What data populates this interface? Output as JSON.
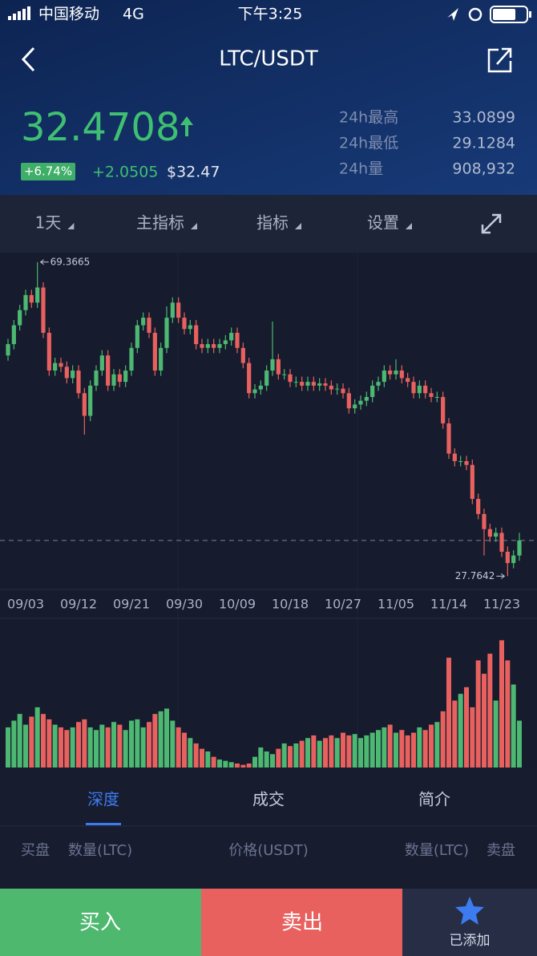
{
  "status_bar": {
    "carrier": "中国移动",
    "network": "4G",
    "time": "下午3:25"
  },
  "header": {
    "title": "LTC/USDT"
  },
  "ticker": {
    "price": "32.4708",
    "change_pct": "+6.74%",
    "change": "+2.0505",
    "usd": "$32.47",
    "stats": [
      {
        "label": "24h最高",
        "value": "33.0899"
      },
      {
        "label": "24h最低",
        "value": "29.1284"
      },
      {
        "label": "24h量",
        "value": "908,932"
      }
    ]
  },
  "toolbar": [
    "1天",
    "主指标",
    "指标",
    "设置"
  ],
  "chart_data": {
    "type": "candlestick",
    "up_color": "#4cb872",
    "down_color": "#e8615f",
    "ylim": [
      26,
      70.3
    ],
    "vlim": [
      0,
      100
    ],
    "categories": [
      null,
      null,
      null,
      "09/03",
      null,
      null,
      null,
      null,
      null,
      null,
      null,
      null,
      "09/12",
      null,
      null,
      null,
      null,
      null,
      null,
      null,
      null,
      "09/21",
      null,
      null,
      null,
      null,
      null,
      null,
      null,
      null,
      "09/30",
      null,
      null,
      null,
      null,
      null,
      null,
      null,
      null,
      "10/09",
      null,
      null,
      null,
      null,
      null,
      null,
      null,
      null,
      "10/18",
      null,
      null,
      null,
      null,
      null,
      null,
      null,
      null,
      "10/27",
      null,
      null,
      null,
      null,
      null,
      null,
      null,
      null,
      "11/05",
      null,
      null,
      null,
      null,
      null,
      null,
      null,
      null,
      "11/14",
      null,
      null,
      null,
      null,
      null,
      null,
      null,
      null,
      "11/23",
      null,
      null,
      null
    ],
    "candles": [
      [
        57,
        59.2,
        56.3,
        58.5
      ],
      [
        58.5,
        61.7,
        57.8,
        61
      ],
      [
        61,
        63.7,
        60.3,
        63
      ],
      [
        63,
        65.7,
        62.3,
        65
      ],
      [
        65,
        65.7,
        63.3,
        64
      ],
      [
        64,
        69.3665,
        63.3,
        66
      ],
      [
        66,
        66.7,
        59.3,
        60
      ],
      [
        60,
        60.7,
        54.3,
        55
      ],
      [
        55,
        56.7,
        54.3,
        56
      ],
      [
        56,
        56.7,
        54.8,
        55.5
      ],
      [
        55.5,
        56.2,
        53.3,
        54
      ],
      [
        54,
        55.7,
        53.3,
        55
      ],
      [
        55,
        55.7,
        51.3,
        52
      ],
      [
        52,
        52.7,
        46.5,
        49
      ],
      [
        49,
        53.7,
        48.3,
        53
      ],
      [
        53,
        55.7,
        52.3,
        55
      ],
      [
        55,
        57.7,
        54.3,
        57
      ],
      [
        57,
        57.7,
        52.3,
        53
      ],
      [
        53,
        55.2,
        52.3,
        54.5
      ],
      [
        54.5,
        55.2,
        52.8,
        53.5
      ],
      [
        53.5,
        55.7,
        52.8,
        55
      ],
      [
        55,
        58.7,
        54.3,
        58
      ],
      [
        58,
        61.7,
        57.3,
        61
      ],
      [
        61,
        62.7,
        60.3,
        62
      ],
      [
        62,
        62.7,
        59.3,
        60
      ],
      [
        60,
        60.7,
        54.3,
        55
      ],
      [
        55,
        58.7,
        54.3,
        58
      ],
      [
        58,
        63.5,
        57.3,
        62
      ],
      [
        62,
        64.7,
        61.3,
        64
      ],
      [
        64,
        64.7,
        61.3,
        62
      ],
      [
        62,
        62.7,
        59.8,
        60.5
      ],
      [
        60.5,
        61.7,
        59.8,
        61
      ],
      [
        61,
        61.7,
        57.8,
        58.5
      ],
      [
        58.5,
        59.2,
        57.3,
        58
      ],
      [
        58,
        59.2,
        57.3,
        58.5
      ],
      [
        58.5,
        59.2,
        57.3,
        58
      ],
      [
        58,
        59.2,
        57.3,
        58.5
      ],
      [
        58.5,
        59.7,
        57.8,
        59
      ],
      [
        59,
        60.7,
        58.3,
        60
      ],
      [
        60,
        60.7,
        57.3,
        58
      ],
      [
        58,
        58.7,
        55.3,
        56
      ],
      [
        56,
        56.7,
        51.3,
        52
      ],
      [
        52,
        53.2,
        51.3,
        52.5
      ],
      [
        52.5,
        53.7,
        51.8,
        53
      ],
      [
        53,
        55.7,
        52.3,
        55
      ],
      [
        55,
        61.5,
        54.3,
        56.5
      ],
      [
        56.5,
        57.2,
        53.8,
        54.5
      ],
      [
        54.5,
        55.2,
        53.8,
        54.5
      ],
      [
        54.5,
        55.2,
        52.8,
        53.5
      ],
      [
        53.5,
        54.2,
        52.8,
        53.5
      ],
      [
        53.5,
        54.2,
        52.3,
        53
      ],
      [
        53,
        54.2,
        52.3,
        53.5
      ],
      [
        53.5,
        54.2,
        52.3,
        53
      ],
      [
        53,
        54,
        52.3,
        53.3
      ],
      [
        53.3,
        54,
        52.3,
        53
      ],
      [
        53,
        53.7,
        51.8,
        52.5
      ],
      [
        52.5,
        53.3,
        51.8,
        52.6
      ],
      [
        52.6,
        53.3,
        51.3,
        52
      ],
      [
        52,
        52.7,
        49.3,
        50
      ],
      [
        50,
        51.2,
        49.3,
        50.5
      ],
      [
        50.5,
        51.7,
        49.8,
        51
      ],
      [
        51,
        52.2,
        50.3,
        51.5
      ],
      [
        51.5,
        53.7,
        50.8,
        53
      ],
      [
        53,
        54.2,
        52.3,
        53.5
      ],
      [
        53.5,
        55.7,
        52.8,
        55
      ],
      [
        55,
        55.7,
        53.8,
        54.5
      ],
      [
        54.5,
        56.5,
        53.8,
        55
      ],
      [
        55,
        55.7,
        53.3,
        54
      ],
      [
        54,
        54.7,
        52.8,
        53.5
      ],
      [
        53.5,
        54.2,
        51.3,
        52
      ],
      [
        52,
        53.7,
        51.3,
        53
      ],
      [
        53,
        53.7,
        51.3,
        52
      ],
      [
        52,
        52.7,
        50.8,
        51.5
      ],
      [
        51.5,
        52.2,
        50.8,
        51.5
      ],
      [
        51.5,
        52.2,
        47.3,
        48
      ],
      [
        48,
        48.7,
        43.3,
        44
      ],
      [
        44,
        44.7,
        42.3,
        43
      ],
      [
        43,
        43.7,
        42.3,
        43
      ],
      [
        43,
        43.7,
        41.8,
        42.5
      ],
      [
        42.5,
        43.2,
        37.3,
        38
      ],
      [
        38,
        38.7,
        35.3,
        36
      ],
      [
        36,
        36.7,
        30.5,
        34
      ],
      [
        34,
        34.7,
        32.3,
        33
      ],
      [
        33,
        34.2,
        32.3,
        33.5
      ],
      [
        33.5,
        34.2,
        30.3,
        31
      ],
      [
        31,
        31.7,
        27.7642,
        29.5
      ],
      [
        29.5,
        31.2,
        28.8,
        30.5
      ],
      [
        30.5,
        33.5,
        29.8,
        32.5
      ]
    ],
    "volume": [
      30,
      35,
      40,
      32,
      38,
      45,
      40,
      36,
      32,
      30,
      28,
      30,
      34,
      36,
      30,
      28,
      32,
      30,
      34,
      32,
      28,
      35,
      36,
      30,
      34,
      40,
      42,
      44,
      35,
      30,
      26,
      22,
      18,
      14,
      12,
      8,
      6,
      5,
      4,
      3,
      2,
      3,
      8,
      15,
      12,
      10,
      14,
      18,
      16,
      18,
      20,
      22,
      24,
      20,
      22,
      24,
      22,
      26,
      24,
      25,
      22,
      24,
      26,
      28,
      30,
      32,
      26,
      28,
      24,
      26,
      30,
      28,
      32,
      34,
      42,
      82,
      50,
      55,
      60,
      45,
      80,
      70,
      85,
      50,
      95,
      80,
      62,
      35
    ]
  },
  "tabs": [
    "深度",
    "成交",
    "简介"
  ],
  "depth_header": [
    "买盘",
    "数量(LTC)",
    "价格(USDT)",
    "数量(LTC)",
    "卖盘"
  ],
  "actions": {
    "buy": "买入",
    "sell": "卖出",
    "added": "已添加"
  }
}
